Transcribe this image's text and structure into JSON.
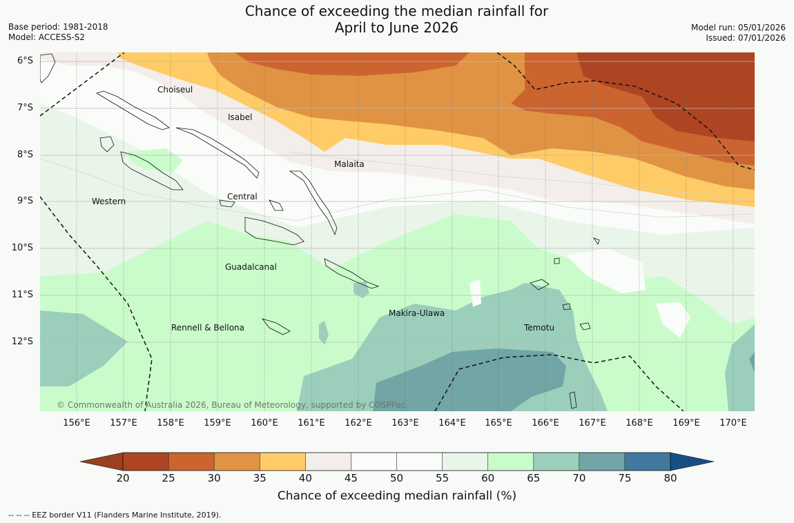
{
  "header": {
    "title_line1": "Chance of exceeding the median rainfall for",
    "title_line2": "April to June 2026",
    "base_period": "Base period: 1981-2018",
    "model": "Model: ACCESS-S2",
    "model_run": "Model run: 05/01/2026",
    "issued": "Issued: 07/01/2026"
  },
  "map": {
    "lat_labels": [
      "6°S",
      "7°S",
      "8°S",
      "9°S",
      "10°S",
      "11°S",
      "12°S"
    ],
    "lon_labels": [
      "156°E",
      "157°E",
      "158°E",
      "159°E",
      "160°E",
      "161°E",
      "162°E",
      "163°E",
      "164°E",
      "165°E",
      "166°E",
      "167°E",
      "168°E",
      "169°E",
      "170°E"
    ],
    "places": {
      "choiseul": "Choiseul",
      "isabel": "Isabel",
      "malaita": "Malaita",
      "western": "Western",
      "central": "Central",
      "guadalcanal": "Guadalcanal",
      "makira_ulawa": "Makira-Ulawa",
      "rennell_bellona": "Rennell & Bellona",
      "temotu": "Temotu"
    },
    "copyright": "© Commonwealth of Australia 2026, Bureau of Meteorology, supported by COSPPac"
  },
  "colorbar": {
    "ticks": [
      "20",
      "25",
      "30",
      "35",
      "40",
      "45",
      "50",
      "55",
      "60",
      "65",
      "70",
      "75",
      "80"
    ],
    "colors": [
      "#ad4522",
      "#cc6430",
      "#e09343",
      "#fecb66",
      "#f3eeea",
      "#fbfcfb",
      "#f9fcf9",
      "#e9f5e9",
      "#cafccb",
      "#9bcfbb",
      "#72a5a5",
      "#41799f"
    ],
    "under_color": "#9a3f20",
    "over_color": "#174f85",
    "label": "Chance of exceeding median rainfall (%)"
  },
  "legend": {
    "eez": "--  --  -- EEZ border V11 (Flanders Marine Institute, 2019)."
  }
}
